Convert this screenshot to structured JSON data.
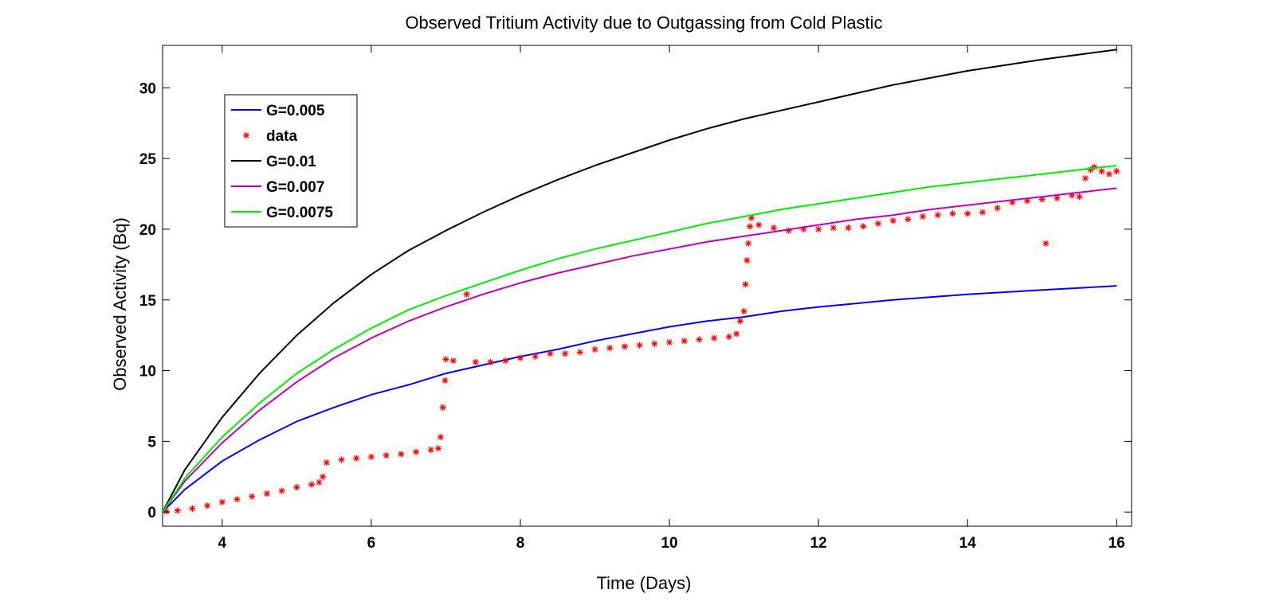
{
  "chart_data": {
    "type": "line",
    "title": "Observed Tritium Activity due to Outgassing from Cold Plastic",
    "xlabel": "Time (Days)",
    "ylabel": "Observed Activity (Bq)",
    "xlim": [
      3.2,
      16.2
    ],
    "ylim": [
      -1,
      33
    ],
    "xticks": [
      4,
      6,
      8,
      10,
      12,
      14,
      16
    ],
    "yticks": [
      0,
      5,
      10,
      15,
      20,
      25,
      30
    ],
    "grid": false,
    "legend_position": "top-left",
    "series": [
      {
        "name": "G=0.005",
        "style": "line",
        "color": "#0000ff",
        "x": [
          3.2,
          3.5,
          4,
          4.5,
          5,
          5.5,
          6,
          6.5,
          7,
          7.5,
          8,
          8.5,
          9,
          9.5,
          10,
          10.5,
          11,
          11.5,
          12,
          12.5,
          13,
          13.5,
          14,
          14.5,
          15,
          15.5,
          16
        ],
        "y": [
          0,
          1.6,
          3.6,
          5.1,
          6.4,
          7.4,
          8.3,
          9.0,
          9.8,
          10.4,
          11.0,
          11.5,
          12.1,
          12.6,
          13.1,
          13.5,
          13.8,
          14.2,
          14.5,
          14.75,
          15.0,
          15.2,
          15.4,
          15.55,
          15.7,
          15.85,
          16.0
        ]
      },
      {
        "name": "data",
        "style": "markers",
        "color": "#ff0000",
        "x": [
          3.25,
          3.4,
          3.6,
          3.8,
          4.0,
          4.2,
          4.4,
          4.6,
          4.8,
          5.0,
          5.2,
          5.3,
          5.35,
          5.4,
          5.6,
          5.8,
          6.0,
          6.2,
          6.4,
          6.6,
          6.8,
          6.9,
          6.93,
          6.96,
          6.99,
          7.0,
          7.1,
          7.28,
          7.4,
          7.6,
          7.8,
          8.0,
          8.2,
          8.4,
          8.6,
          8.8,
          9.0,
          9.2,
          9.4,
          9.6,
          9.8,
          10.0,
          10.2,
          10.4,
          10.6,
          10.8,
          10.9,
          10.95,
          11.0,
          11.02,
          11.04,
          11.06,
          11.08,
          11.1,
          11.2,
          11.4,
          11.6,
          11.8,
          12.0,
          12.2,
          12.4,
          12.6,
          12.8,
          13.0,
          13.2,
          13.4,
          13.6,
          13.8,
          14.0,
          14.2,
          14.4,
          14.6,
          14.8,
          15.0,
          15.05,
          15.2,
          15.4,
          15.5,
          15.58,
          15.65,
          15.7,
          15.8,
          15.9,
          16.0
        ],
        "y": [
          0.05,
          0.1,
          0.25,
          0.45,
          0.7,
          0.9,
          1.1,
          1.3,
          1.5,
          1.75,
          1.95,
          2.1,
          2.5,
          3.5,
          3.7,
          3.8,
          3.9,
          4.0,
          4.1,
          4.25,
          4.4,
          4.5,
          5.3,
          7.4,
          9.3,
          10.8,
          10.7,
          15.4,
          10.6,
          10.6,
          10.7,
          10.9,
          11.0,
          11.2,
          11.2,
          11.3,
          11.5,
          11.6,
          11.7,
          11.8,
          11.9,
          12.0,
          12.1,
          12.2,
          12.3,
          12.4,
          12.6,
          13.5,
          14.2,
          16.1,
          17.8,
          19.0,
          20.2,
          20.8,
          20.3,
          20.1,
          19.9,
          20.0,
          20.0,
          20.1,
          20.1,
          20.2,
          20.4,
          20.6,
          20.7,
          20.9,
          21.0,
          21.1,
          21.1,
          21.2,
          21.5,
          21.9,
          22.0,
          22.1,
          19.0,
          22.2,
          22.4,
          22.3,
          23.6,
          24.2,
          24.4,
          24.1,
          23.9,
          24.1
        ]
      },
      {
        "name": "G=0.01",
        "style": "line",
        "color": "#000000",
        "x": [
          3.2,
          3.5,
          4,
          4.5,
          5,
          5.5,
          6,
          6.5,
          7,
          7.5,
          8,
          8.5,
          9,
          9.5,
          10,
          10.5,
          11,
          11.5,
          12,
          12.5,
          13,
          13.5,
          14,
          14.5,
          15,
          15.5,
          16
        ],
        "y": [
          0,
          3.0,
          6.7,
          9.8,
          12.5,
          14.8,
          16.8,
          18.5,
          19.9,
          21.2,
          22.4,
          23.5,
          24.5,
          25.4,
          26.3,
          27.1,
          27.8,
          28.4,
          29.0,
          29.6,
          30.2,
          30.7,
          31.2,
          31.6,
          32.0,
          32.35,
          32.7
        ]
      },
      {
        "name": "G=0.007",
        "style": "line",
        "color": "#c000c0",
        "x": [
          3.2,
          3.5,
          4,
          4.5,
          5,
          5.5,
          6,
          6.5,
          7,
          7.5,
          8,
          8.5,
          9,
          9.5,
          10,
          10.5,
          11,
          11.5,
          12,
          12.5,
          13,
          13.5,
          14,
          14.5,
          15,
          15.5,
          16
        ],
        "y": [
          0,
          2.2,
          4.9,
          7.2,
          9.2,
          10.9,
          12.3,
          13.5,
          14.5,
          15.4,
          16.2,
          16.9,
          17.5,
          18.1,
          18.6,
          19.1,
          19.5,
          19.9,
          20.3,
          20.7,
          21.0,
          21.4,
          21.7,
          22.0,
          22.3,
          22.6,
          22.9
        ]
      },
      {
        "name": "G=0.0075",
        "style": "line",
        "color": "#00ee00",
        "x": [
          3.2,
          3.5,
          4,
          4.5,
          5,
          5.5,
          6,
          6.5,
          7,
          7.5,
          8,
          8.5,
          9,
          9.5,
          10,
          10.5,
          11,
          11.5,
          12,
          12.5,
          13,
          13.5,
          14,
          14.5,
          15,
          15.5,
          16
        ],
        "y": [
          0,
          2.4,
          5.3,
          7.7,
          9.8,
          11.5,
          13.0,
          14.3,
          15.3,
          16.2,
          17.1,
          17.9,
          18.6,
          19.2,
          19.8,
          20.4,
          20.9,
          21.4,
          21.8,
          22.2,
          22.6,
          23.0,
          23.3,
          23.6,
          23.9,
          24.2,
          24.5
        ]
      }
    ]
  }
}
